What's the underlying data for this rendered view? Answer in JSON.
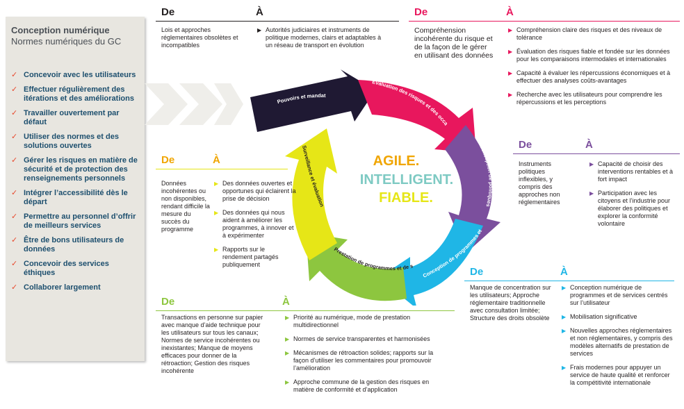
{
  "sidebar": {
    "title": "Conception numérique",
    "subtitle": "Normes numériques du GC",
    "items": [
      "Concevoir avec les utilisateurs",
      "Effectuer régulièrement des itérations et des améliorations",
      "Travailler ouvertement par défaut",
      "Utiliser des normes et des solutions ouvertes",
      "Gérer les risques en matière de sécurité et de protection des renseignements personnels",
      "Intégrer l’accessibilité dès le départ",
      "Permettre au personnel d’offrir de meilleurs services",
      "Être de bons utilisateurs de données",
      "Concevoir des services éthiques",
      "Collaborer largement"
    ]
  },
  "labels": {
    "de": "De",
    "a": "À"
  },
  "center": {
    "line1": "AGILE.",
    "line2": "INTELLIGENT.",
    "line3": "FIABLE."
  },
  "colors": {
    "dark": "#1f1933",
    "pink": "#e8175d",
    "purple": "#7b4f9d",
    "blue": "#1fb6e6",
    "green": "#8dc63f",
    "yellow": "#e6e617",
    "orange": "#f0a500",
    "check": "#e8482c"
  },
  "cycle": [
    {
      "label": "Pouvoirs et mandat"
    },
    {
      "label": "Évaluation des risques et des occasions"
    },
    {
      "label": "Conception de politiques"
    },
    {
      "label": "Conception de programmes et de services"
    },
    {
      "label": "Prestation de programmes et de services"
    },
    {
      "label": "Surveillance et évaluation"
    }
  ],
  "blocks": {
    "mandate": {
      "de": "Lois et approches réglementaires obsolètes et incompatibles",
      "a": [
        "Autorités judiciaires et instruments de politique modernes, clairs et adaptables à un réseau de transport en évolution"
      ]
    },
    "risk": {
      "de": "Compréhension incohérente du risque et de la façon de le gérer en utilisant des données",
      "a": [
        "Compréhension claire des risques et des niveaux de tolérance",
        "Évaluation des risques fiable et fondée sur les données pour les comparaisons intermodales et internationales",
        "Capacité à évaluer les répercussions économiques et à effectuer des analyses coûts-avantages",
        "Recherche avec les utilisateurs pour comprendre les répercussions et les perceptions"
      ]
    },
    "policy": {
      "de": "Instruments politiques inflexibles, y compris des approches non réglementaires",
      "a": [
        "Capacité de choisir des interventions rentables et à fort impact",
        "Participation avec les citoyens et l’industrie pour élaborer des politiques et explorer la conformité volontaire"
      ]
    },
    "design": {
      "de": "Manque de concentration sur les utilisateurs; Approche réglementaire traditionnelle avec consultation limitée; Structure des droits obsolète",
      "a": [
        "Conception numérique de programmes et de services centrés sur l’utilisateur",
        "Mobilisation significative",
        "Nouvelles approches réglementaires et non réglementaires, y compris des modèles alternatifs de prestation de services",
        "Frais modernes pour appuyer un service de haute qualité et renforcer la compétitivité internationale"
      ]
    },
    "delivery": {
      "de": "Transactions en personne sur papier avec manque d’aide technique pour les utilisateurs sur tous les canaux; Normes de service incohérentes ou inexistantes; Manque de moyens efficaces pour donner de la rétroaction; Gestion des risques incohérente",
      "a": [
        "Priorité au numérique, mode de prestation multidirectionnel",
        "Normes de service transparentes et harmonisées",
        "Mécanismes de rétroaction solides; rapports sur la façon d’utiliser les commentaires pour promouvoir l’amélioration",
        "Approche commune de la gestion des risques en matière de conformité et d’application"
      ]
    },
    "monitoring": {
      "de": "Données incohérentes ou non disponibles, rendant difficile la mesure du succès du programme",
      "a": [
        "Des données ouvertes et opportunes qui éclairent la prise de décision",
        "Des données qui nous aident à améliorer les programmes, à innover et à expérimenter",
        "Rapports sur le rendement partagés publiquement"
      ]
    }
  }
}
